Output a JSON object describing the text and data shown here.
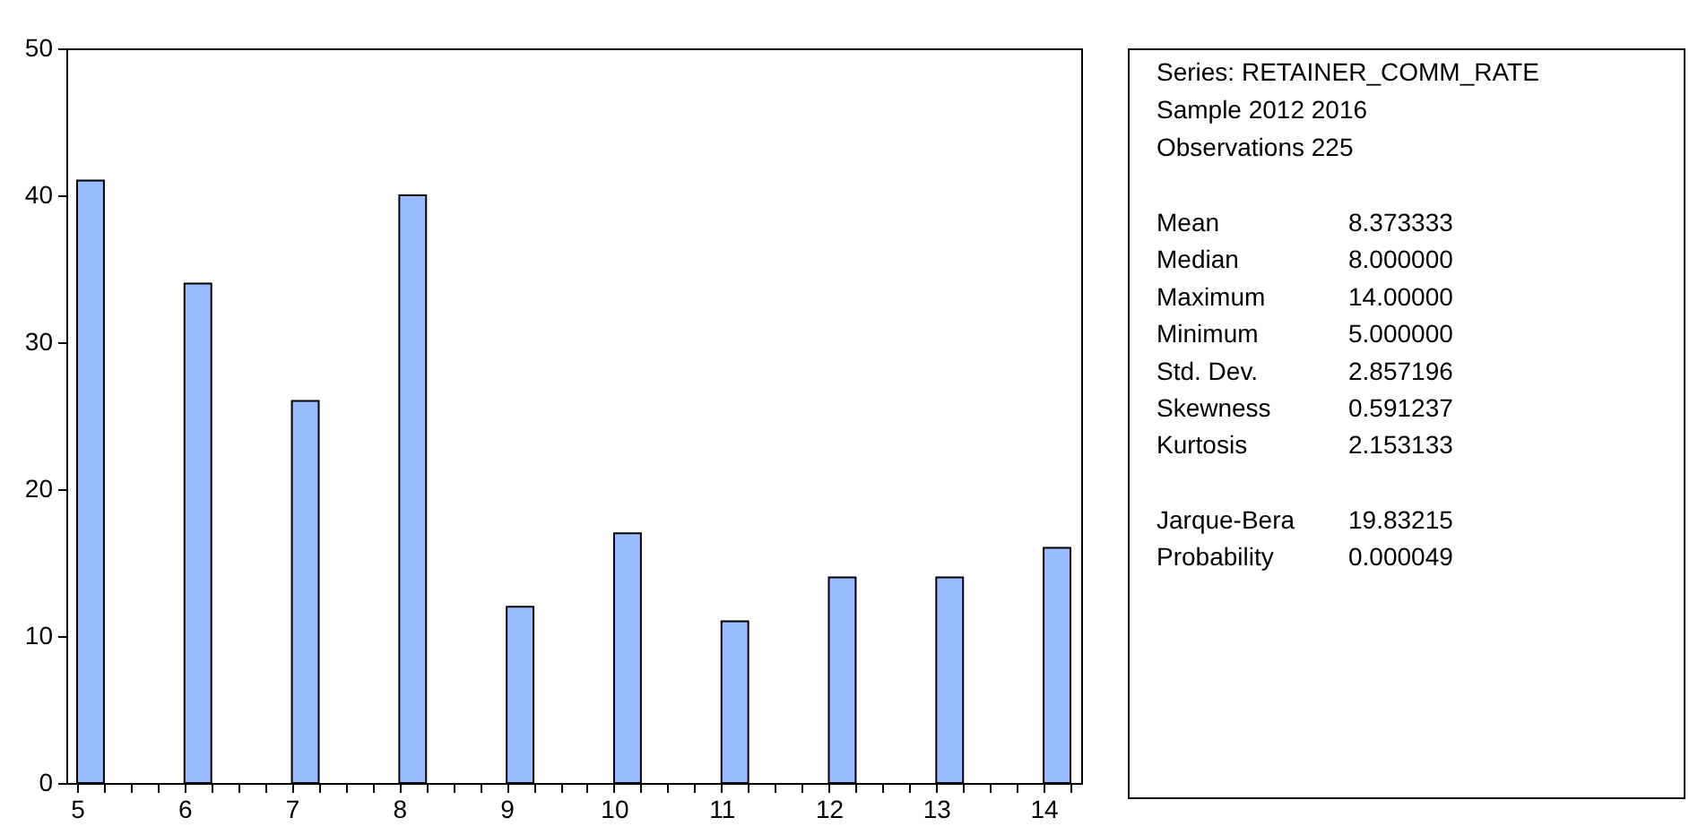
{
  "chart_data": [
    {
      "type": "histogram",
      "color": "#99bbff",
      "bins": [
        5,
        5.25,
        5.5,
        5.75,
        6,
        6.25,
        6.5,
        6.75,
        7,
        7.25,
        7.5,
        7.75,
        8,
        8.25,
        8.5,
        8.75,
        9,
        9.25,
        9.5,
        9.75,
        10,
        10.25,
        10.5,
        10.75,
        11,
        11.25,
        11.5,
        11.75,
        12,
        12.25,
        12.5,
        12.75,
        13,
        13.25,
        13.5,
        13.75,
        14,
        14.25
      ],
      "values": [
        41,
        0,
        0,
        0,
        34,
        0,
        0,
        0,
        26,
        0,
        0,
        0,
        40,
        0,
        0,
        0,
        12,
        0,
        0,
        0,
        17,
        0,
        0,
        0,
        11,
        0,
        0,
        0,
        14,
        0,
        0,
        0,
        14,
        0,
        0,
        0,
        16
      ],
      "xlim": [
        4.9,
        14.35
      ],
      "xticks": [
        5,
        {
          "value": 5.25,
          "label": null
        },
        {
          "value": 5.5,
          "label": null
        },
        {
          "value": 5.75,
          "label": null
        },
        6,
        {
          "value": 6.25,
          "label": null
        },
        {
          "value": 6.5,
          "label": null
        },
        {
          "value": 6.75,
          "label": null
        },
        7,
        {
          "value": 7.25,
          "label": null
        },
        {
          "value": 7.5,
          "label": null
        },
        {
          "value": 7.75,
          "label": null
        },
        8,
        {
          "value": 8.25,
          "label": null
        },
        {
          "value": 8.5,
          "label": null
        },
        {
          "value": 8.75,
          "label": null
        },
        9,
        {
          "value": 9.25,
          "label": null
        },
        {
          "value": 9.5,
          "label": null
        },
        {
          "value": 9.75,
          "label": null
        },
        10,
        {
          "value": 10.25,
          "label": null
        },
        {
          "value": 10.5,
          "label": null
        },
        {
          "value": 10.75,
          "label": null
        },
        11,
        {
          "value": 11.25,
          "label": null
        },
        {
          "value": 11.5,
          "label": null
        },
        {
          "value": 11.75,
          "label": null
        },
        12,
        {
          "value": 12.25,
          "label": null
        },
        {
          "value": 12.5,
          "label": null
        },
        {
          "value": 12.75,
          "label": null
        },
        13,
        {
          "value": 13.25,
          "label": null
        },
        {
          "value": 13.5,
          "label": null
        },
        {
          "value": 13.75,
          "label": null
        },
        14,
        {
          "value": 14.25,
          "label": null
        }
      ],
      "ylim": [
        0,
        50
      ],
      "yticks": [
        0,
        10,
        20,
        30,
        40,
        50
      ],
      "grid": false
    },
    {
      "type": "other",
      "annotations": [
        "Series: RETAINER_COMM_RATE",
        "Sample 2012 2016",
        "Observations 225",
        "Mean\t8.373333",
        "Median\t8.000000",
        "Maximum\t14.00000",
        "Minimum\t5.000000",
        "Std. Dev.\t2.857196",
        "Skewness\t0.591237",
        "Kurtosis\t2.153133",
        "Jarque-Bera\t19.83215",
        "Probability\t0.000049"
      ]
    }
  ]
}
